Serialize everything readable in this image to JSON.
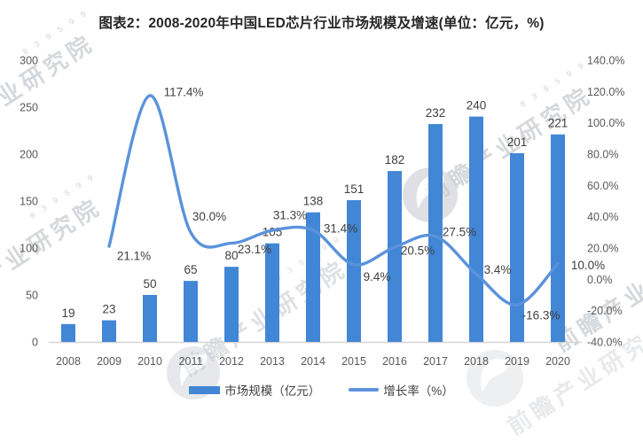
{
  "title": "图表2：2008-2020年中国LED芯片行业市场规模及增速(单位：亿元，%)",
  "watermark": {
    "text": "前瞻产业研究院",
    "code": "8 3 9 5 9 9"
  },
  "chart_data": {
    "type": "bar+line",
    "title": "图表2：2008-2020年中国LED芯片行业市场规模及增速(单位：亿元，%)",
    "categories": [
      "2008",
      "2009",
      "2010",
      "2011",
      "2012",
      "2013",
      "2014",
      "2015",
      "2016",
      "2017",
      "2018",
      "2019",
      "2020"
    ],
    "series": [
      {
        "name": "市场规模（亿元）",
        "type": "bar",
        "axis": "left",
        "values": [
          19,
          23,
          50,
          65,
          80,
          105,
          138,
          151,
          182,
          232,
          240,
          201,
          221
        ],
        "labels": [
          "19",
          "23",
          "50",
          "65",
          "80",
          "105",
          "138",
          "151",
          "182",
          "232",
          "240",
          "201",
          "221"
        ]
      },
      {
        "name": "增长率（%）",
        "type": "line",
        "axis": "right",
        "x_start_index": 1,
        "values": [
          21.1,
          117.4,
          30.0,
          23.1,
          31.3,
          31.4,
          9.4,
          20.5,
          27.5,
          3.4,
          -16.3,
          10.0
        ],
        "labels": [
          "21.1%",
          "117.4%",
          "30.0%",
          "23.1%",
          "31.3%",
          "31.4%",
          "9.4%",
          "20.5%",
          "27.5%",
          "3.4%",
          "-16.3%",
          "10.0%"
        ],
        "label_offsets": [
          [
            28,
            11
          ],
          [
            38,
            -4
          ],
          [
            21,
            -18
          ],
          [
            26,
            7
          ],
          [
            20,
            -17
          ],
          [
            31,
            -2
          ],
          [
            26,
            14
          ],
          [
            26,
            4
          ],
          [
            27,
            -5
          ],
          [
            24,
            -5
          ],
          [
            27,
            12
          ],
          [
            34,
            2
          ]
        ]
      }
    ],
    "axes": {
      "left": {
        "min": 0,
        "max": 300,
        "ticks": [
          {
            "value": 0,
            "label": "0"
          },
          {
            "value": 50,
            "label": "50"
          },
          {
            "value": 100,
            "label": "100"
          },
          {
            "value": 150,
            "label": "150"
          },
          {
            "value": 200,
            "label": "200"
          },
          {
            "value": 250,
            "label": "250"
          },
          {
            "value": 300,
            "label": "300"
          }
        ]
      },
      "right": {
        "min": -40,
        "max": 140,
        "ticks": [
          {
            "value": 140,
            "label": "140.0%"
          },
          {
            "value": 120,
            "label": "120.0%"
          },
          {
            "value": 100,
            "label": "100.0%"
          },
          {
            "value": 80,
            "label": "80.0%"
          },
          {
            "value": 60,
            "label": "60.0%"
          },
          {
            "value": 40,
            "label": "40.0%"
          },
          {
            "value": 20,
            "label": "20.0%"
          },
          {
            "value": 0,
            "label": "0.0%"
          },
          {
            "value": -20,
            "label": "-20.0%"
          },
          {
            "value": -40,
            "label": "-40.0%"
          }
        ]
      }
    },
    "grid": false,
    "legend_position": "bottom",
    "colors": {
      "bar": "#4286d6",
      "line": "#5b92db",
      "data_label": "#3f3f3f",
      "axis_text": "#595959",
      "axis_line": "#d4d4d4",
      "title": "#262626",
      "watermark": "#9ca1aa"
    }
  }
}
